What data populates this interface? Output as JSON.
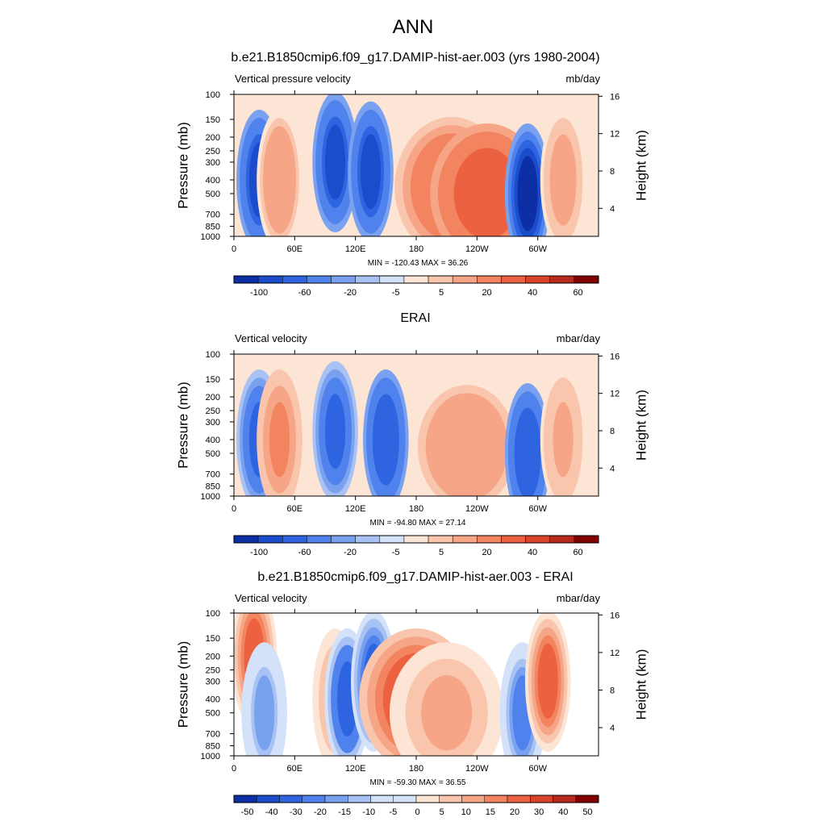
{
  "main_title": "ANN",
  "panels": [
    {
      "title": "b.e21.B1850cmip6.f09_g17.DAMIP-hist-aer.003 (yrs 1980-2004)",
      "var_name": "Vertical pressure velocity",
      "units": "mb/day",
      "minmax": "MIN = -120.43  MAX =  36.26",
      "colorbar_labels": [
        "-100",
        "-60",
        "-20",
        "-5",
        "5",
        "20",
        "40",
        "60"
      ]
    },
    {
      "title": "ERAI",
      "var_name": "Vertical velocity",
      "units": "mbar/day",
      "minmax": "MIN = -94.80  MAX =  27.14",
      "colorbar_labels": [
        "-100",
        "-60",
        "-20",
        "-5",
        "5",
        "20",
        "40",
        "60"
      ]
    },
    {
      "title": "b.e21.B1850cmip6.f09_g17.DAMIP-hist-aer.003 - ERAI",
      "var_name": "Vertical velocity",
      "units": "mbar/day",
      "minmax": "MIN = -59.30  MAX =  36.55",
      "colorbar_labels": [
        "-50",
        "-40",
        "-30",
        "-20",
        "-15",
        "-10",
        "-5",
        "0",
        "5",
        "10",
        "15",
        "20",
        "30",
        "40",
        "50"
      ]
    }
  ],
  "chart_data": [
    {
      "type": "heatmap",
      "title": "b.e21.B1850cmip6.f09_g17.DAMIP-hist-aer.003 (yrs 1980-2004)",
      "xlabel": "",
      "ylabel": "Pressure (mb)",
      "y2label": "Height (km)",
      "x_ticks": [
        "0",
        "60E",
        "120E",
        "180",
        "120W",
        "60W"
      ],
      "y_ticks": [
        100,
        150,
        200,
        250,
        300,
        400,
        500,
        700,
        850,
        1000
      ],
      "y2_ticks": [
        4,
        8,
        12,
        16
      ],
      "xlim": [
        0,
        360
      ],
      "ylim": [
        1000,
        100
      ],
      "y_scale": "log",
      "min": -120.43,
      "max": 36.26,
      "colorbar_levels": [
        -100,
        -80,
        -60,
        -40,
        -20,
        -10,
        -5,
        -2,
        2,
        5,
        10,
        20,
        30,
        40,
        50,
        60
      ],
      "colorbar_labels": [
        "-100",
        "-60",
        "-20",
        "-5",
        "5",
        "20",
        "40",
        "60"
      ],
      "features": [
        {
          "lon": 25,
          "plev": 400,
          "value": -60
        },
        {
          "lon": 45,
          "plev": 400,
          "value": 10
        },
        {
          "lon": 100,
          "plev": 300,
          "value": -60
        },
        {
          "lon": 135,
          "plev": 350,
          "value": -60
        },
        {
          "lon": 215,
          "plev": 450,
          "value": 20
        },
        {
          "lon": 250,
          "plev": 500,
          "value": 30
        },
        {
          "lon": 290,
          "plev": 500,
          "value": -80
        },
        {
          "lon": 325,
          "plev": 400,
          "value": 8
        }
      ]
    },
    {
      "type": "heatmap",
      "title": "ERAI",
      "xlabel": "",
      "ylabel": "Pressure (mb)",
      "y2label": "Height (km)",
      "x_ticks": [
        "0",
        "60E",
        "120E",
        "180",
        "120W",
        "60W"
      ],
      "y_ticks": [
        100,
        150,
        200,
        250,
        300,
        400,
        500,
        700,
        850,
        1000
      ],
      "y2_ticks": [
        4,
        8,
        12,
        16
      ],
      "xlim": [
        0,
        360
      ],
      "ylim": [
        1000,
        100
      ],
      "y_scale": "log",
      "min": -94.8,
      "max": 27.14,
      "colorbar_levels": [
        -100,
        -80,
        -60,
        -40,
        -20,
        -10,
        -5,
        -2,
        2,
        5,
        10,
        20,
        30,
        40,
        50,
        60
      ],
      "colorbar_labels": [
        "-100",
        "-60",
        "-20",
        "-5",
        "5",
        "20",
        "40",
        "60"
      ],
      "features": [
        {
          "lon": 25,
          "plev": 400,
          "value": -45
        },
        {
          "lon": 45,
          "plev": 400,
          "value": 12
        },
        {
          "lon": 100,
          "plev": 350,
          "value": -40
        },
        {
          "lon": 150,
          "plev": 400,
          "value": -50
        },
        {
          "lon": 230,
          "plev": 450,
          "value": 10
        },
        {
          "lon": 290,
          "plev": 500,
          "value": -50
        },
        {
          "lon": 325,
          "plev": 400,
          "value": 6
        }
      ]
    },
    {
      "type": "heatmap",
      "title": "b.e21.B1850cmip6.f09_g17.DAMIP-hist-aer.003 - ERAI",
      "xlabel": "",
      "ylabel": "Pressure (mb)",
      "y2label": "Height (km)",
      "x_ticks": [
        "0",
        "60E",
        "120E",
        "180",
        "120W",
        "60W"
      ],
      "y_ticks": [
        100,
        150,
        200,
        250,
        300,
        400,
        500,
        700,
        850,
        1000
      ],
      "y2_ticks": [
        4,
        8,
        12,
        16
      ],
      "xlim": [
        0,
        360
      ],
      "ylim": [
        1000,
        100
      ],
      "y_scale": "log",
      "min": -59.3,
      "max": 36.55,
      "colorbar_levels": [
        -60,
        -50,
        -40,
        -30,
        -20,
        -15,
        -10,
        -5,
        0,
        5,
        10,
        15,
        20,
        30,
        40,
        50,
        60
      ],
      "colorbar_labels": [
        "-50",
        "-40",
        "-30",
        "-20",
        "-15",
        "-10",
        "-5",
        "0",
        "5",
        "10",
        "15",
        "20",
        "30",
        "40",
        "50"
      ],
      "features": [
        {
          "lon": 20,
          "plev": 200,
          "value": 25
        },
        {
          "lon": 30,
          "plev": 500,
          "value": -15
        },
        {
          "lon": 100,
          "plev": 400,
          "value": 12
        },
        {
          "lon": 112,
          "plev": 400,
          "value": -35
        },
        {
          "lon": 138,
          "plev": 300,
          "value": -30
        },
        {
          "lon": 180,
          "plev": 400,
          "value": 30
        },
        {
          "lon": 210,
          "plev": 500,
          "value": 12
        },
        {
          "lon": 285,
          "plev": 500,
          "value": -20
        },
        {
          "lon": 310,
          "plev": 300,
          "value": 25
        }
      ]
    }
  ],
  "colors": {
    "div11": [
      "#08306b",
      "#08519c",
      "#2166ac",
      "#3b79e0",
      "#6a9ae8",
      "#a7c3f0",
      "#d6e4f7",
      "#fde2d2",
      "#f7b79a",
      "#f48e6a",
      "#ed5f3f"
    ],
    "blues": [
      "#00007f",
      "#0d2fa6",
      "#1a4ccc",
      "#2f64e0",
      "#4f82ec",
      "#7aa1f0",
      "#a8c2f4",
      "#d3e2f9"
    ],
    "reds": [
      "#fde5d6",
      "#f9c6ad",
      "#f6a586",
      "#f2845f",
      "#ec6240",
      "#d9432a",
      "#b82a1d",
      "#800000"
    ]
  }
}
